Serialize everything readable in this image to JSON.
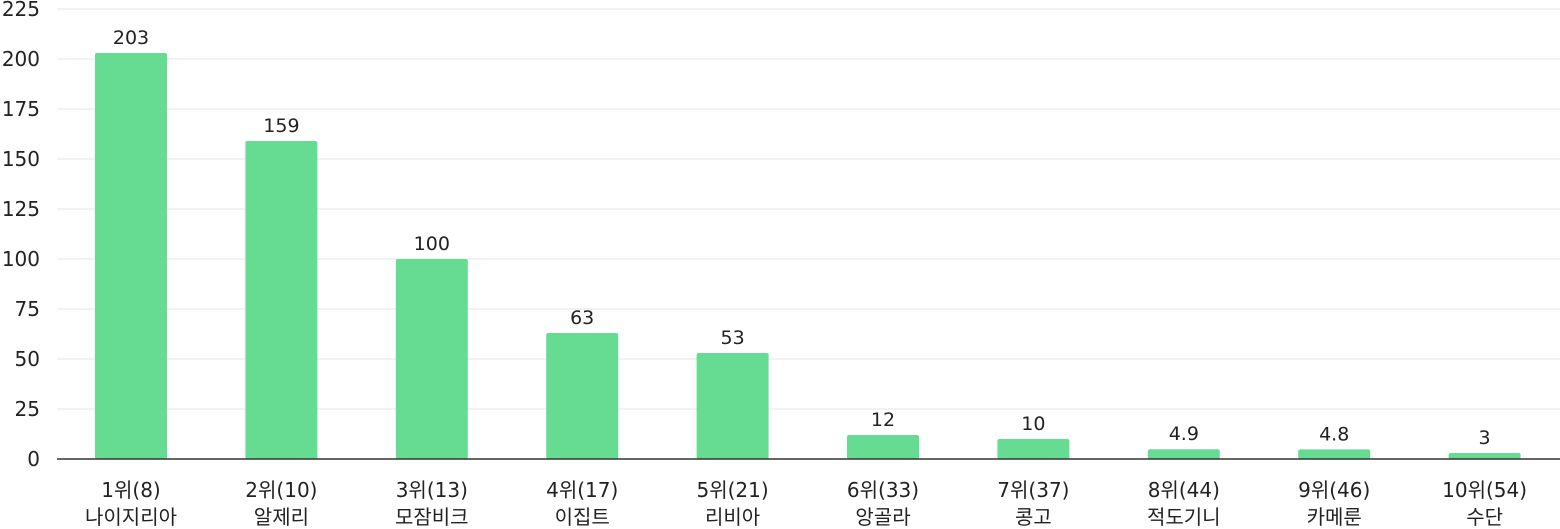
{
  "colors": {
    "bar": "#66dc93",
    "grid": "#e5e5e5",
    "axis": "#333333",
    "text": "#222222"
  },
  "chart_data": {
    "type": "bar",
    "title": "",
    "xlabel": "",
    "ylabel": "",
    "ylim": [
      0,
      225
    ],
    "yticks": [
      "0",
      "25",
      "50",
      "75",
      "100",
      "125",
      "150",
      "175",
      "200",
      "225"
    ],
    "grid": true,
    "legend": "none",
    "categories": [
      {
        "line1": "1위(8)",
        "line2": "나이지리아"
      },
      {
        "line1": "2위(10)",
        "line2": "알제리"
      },
      {
        "line1": "3위(13)",
        "line2": "모잠비크"
      },
      {
        "line1": "4위(17)",
        "line2": "이집트"
      },
      {
        "line1": "5위(21)",
        "line2": "리비아"
      },
      {
        "line1": "6위(33)",
        "line2": "앙골라"
      },
      {
        "line1": "7위(37)",
        "line2": "콩고"
      },
      {
        "line1": "8위(44)",
        "line2": "적도기니"
      },
      {
        "line1": "9위(46)",
        "line2": "카메룬"
      },
      {
        "line1": "10위(54)",
        "line2": "수단"
      }
    ],
    "values": [
      203,
      159,
      100,
      63,
      53,
      12,
      10,
      4.9,
      4.8,
      3
    ],
    "value_labels": [
      "203",
      "159",
      "100",
      "63",
      "53",
      "12",
      "10",
      "4.9",
      "4.8",
      "3"
    ]
  }
}
